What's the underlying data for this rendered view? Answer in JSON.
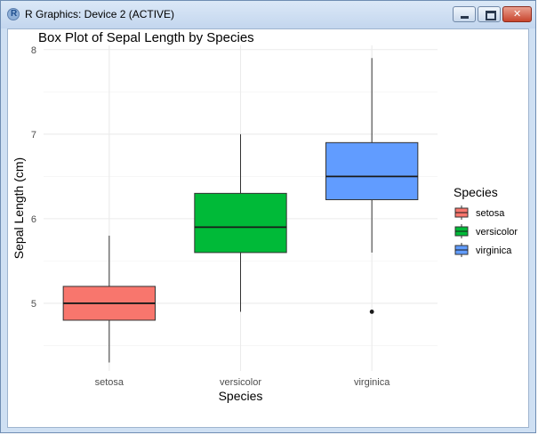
{
  "window": {
    "title": "R Graphics: Device 2 (ACTIVE)"
  },
  "chart_data": {
    "type": "box",
    "title": "Box Plot of Sepal Length by Species",
    "xlabel": "Species",
    "ylabel": "Sepal Length (cm)",
    "ylim": [
      4.2,
      8.05
    ],
    "yticks": [
      5,
      6,
      7,
      8
    ],
    "grid": true,
    "legend": {
      "title": "Species",
      "placement": "right"
    },
    "categories": [
      "setosa",
      "versicolor",
      "virginica"
    ],
    "colors": [
      "#F8766D",
      "#00BA38",
      "#619CFF"
    ],
    "boxes": [
      {
        "name": "setosa",
        "min": 4.3,
        "q1": 4.8,
        "median": 5.0,
        "q3": 5.2,
        "max": 5.8,
        "outliers": []
      },
      {
        "name": "versicolor",
        "min": 4.9,
        "q1": 5.6,
        "median": 5.9,
        "q3": 6.3,
        "max": 7.0,
        "outliers": []
      },
      {
        "name": "virginica",
        "min": 5.6,
        "q1": 6.225,
        "median": 6.5,
        "q3": 6.9,
        "max": 7.9,
        "outliers": [
          4.9
        ]
      }
    ]
  }
}
